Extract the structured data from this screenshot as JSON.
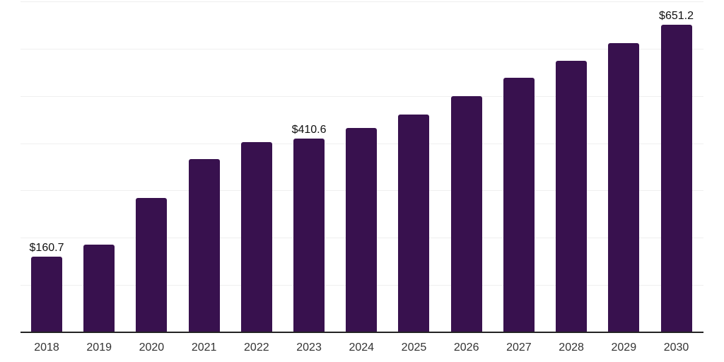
{
  "chart_data": {
    "type": "bar",
    "title": "",
    "xlabel": "",
    "ylabel": "",
    "categories": [
      "2018",
      "2019",
      "2020",
      "2021",
      "2022",
      "2023",
      "2024",
      "2025",
      "2026",
      "2027",
      "2028",
      "2029",
      "2030"
    ],
    "values": [
      160.7,
      186,
      284,
      367,
      402,
      410.6,
      433,
      461,
      499,
      539,
      575,
      612,
      651.2
    ],
    "data_labels": [
      {
        "category": "2018",
        "text": "$160.7"
      },
      {
        "category": "2023",
        "text": "$410.6"
      },
      {
        "category": "2030",
        "text": "$651.2"
      }
    ],
    "ylim": [
      0,
      700
    ],
    "gridline_step": 100,
    "grid": true,
    "legend": false,
    "y_axis_tick_labels_visible": false,
    "colors": {
      "bar": "#38114e",
      "gridline": "#efefef",
      "axis_line": "#242424",
      "value_label_text": "#111111",
      "axis_label_text": "#333333",
      "background": "#ffffff"
    }
  }
}
